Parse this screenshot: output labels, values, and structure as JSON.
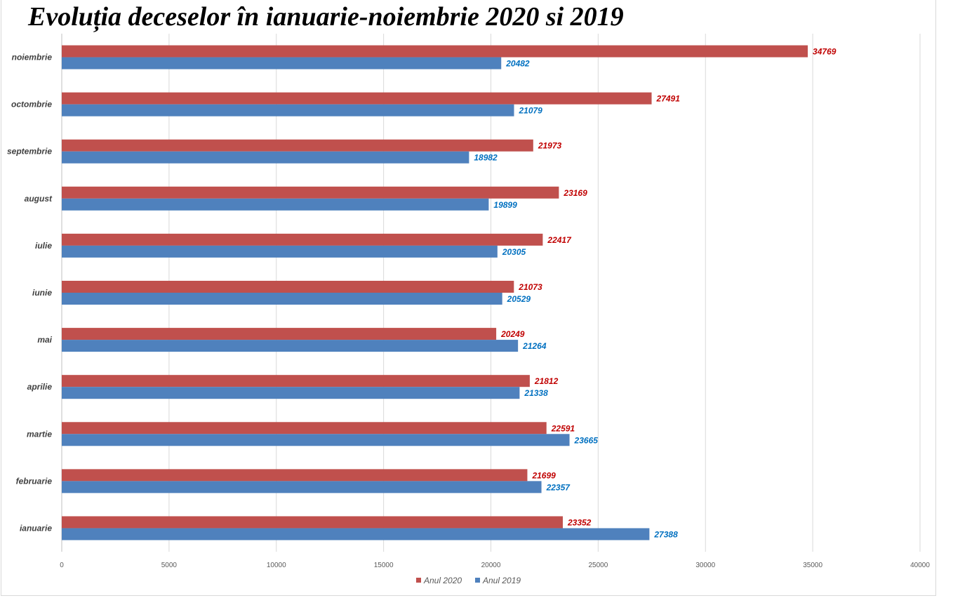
{
  "chart_data": {
    "type": "bar",
    "orientation": "horizontal",
    "title": "Evoluția deceselor în ianuarie-noiembrie 2020 si 2019",
    "categories": [
      "ianuarie",
      "februarie",
      "martie",
      "aprilie",
      "mai",
      "iunie",
      "iulie",
      "august",
      "septembrie",
      "octombrie",
      "noiembrie"
    ],
    "series": [
      {
        "name": "Anul 2020",
        "color": "#c0504d",
        "label_color": "#c00000",
        "values": [
          23352,
          21699,
          22591,
          21812,
          20249,
          21073,
          22417,
          23169,
          21973,
          27491,
          34769
        ]
      },
      {
        "name": "Anul 2019",
        "color": "#4f81bd",
        "label_color": "#0070c0",
        "values": [
          27388,
          22357,
          23665,
          21338,
          21264,
          20529,
          20305,
          19899,
          18982,
          21079,
          20482
        ]
      }
    ],
    "xlim": [
      0,
      40000
    ],
    "xticks": [
      "0",
      "5000",
      "10000",
      "15000",
      "20000",
      "25000",
      "30000",
      "35000",
      "40000"
    ],
    "grid": true,
    "legend_position": "bottom"
  }
}
